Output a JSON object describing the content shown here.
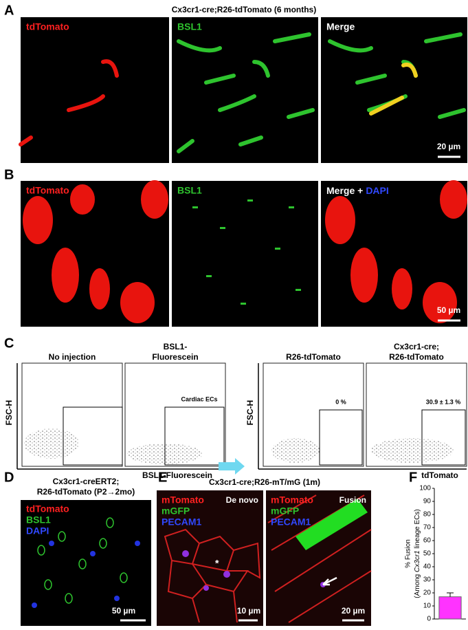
{
  "panel_a": {
    "label": "A",
    "title": "Cx3cr1-cre;R26-tdTomato (6 months)",
    "channels": [
      "tdTomato",
      "BSL1",
      "Merge"
    ],
    "scale_bar": "20 µm"
  },
  "panel_b": {
    "label": "B",
    "channels": [
      "tdTomato",
      "BSL1",
      "Merge +",
      "DAPI"
    ],
    "scale_bar": "50 µm"
  },
  "panel_c": {
    "label": "C",
    "y_axis_label": "FSC-H",
    "plots": [
      {
        "title": [
          "No injection"
        ]
      },
      {
        "title": [
          "BSL1-",
          "Fluorescein"
        ],
        "gate_label": "Cardiac ECs"
      },
      {
        "title": [
          "R26-tdTomato"
        ],
        "gate_label": "0 %"
      },
      {
        "title": [
          "Cx3cr1-cre;",
          "R26-tdTomato"
        ],
        "gate_label": "30.9 ± 1.3 %"
      }
    ],
    "x_axis_labels": [
      "BSL1-Fluorescein",
      "tdTomato"
    ]
  },
  "panel_d": {
    "label": "D",
    "title": [
      "Cx3cr1-creERT2;",
      "R26-tdTomato (P2→2mo)"
    ],
    "channels": [
      "tdTomato",
      "BSL1",
      "DAPI"
    ],
    "scale_bar": "50 µm"
  },
  "panel_e": {
    "label": "E",
    "title": "Cx3cr1-cre;R26-mT/mG (1m)",
    "images": [
      {
        "channels": [
          "mTomato",
          "mGFP",
          "PECAM1"
        ],
        "condition": "De novo",
        "marker": "*",
        "scale_bar": "10 µm"
      },
      {
        "channels": [
          "mTomato",
          "mGFP",
          "PECAM1"
        ],
        "condition": "Fusion",
        "scale_bar": "20 µm"
      }
    ]
  },
  "chart_data": {
    "type": "bar",
    "label": "F",
    "y_label": [
      "% Fusion",
      "(Among ",
      "Cx3cr1",
      " lineage ECs)"
    ],
    "categories": [
      null
    ],
    "values": [
      17
    ],
    "errors": [
      3
    ],
    "color": "#ff33ff",
    "ylim": [
      0,
      100
    ],
    "yticks": [
      0,
      10,
      20,
      30,
      40,
      50,
      60,
      70,
      80,
      90,
      100
    ]
  }
}
